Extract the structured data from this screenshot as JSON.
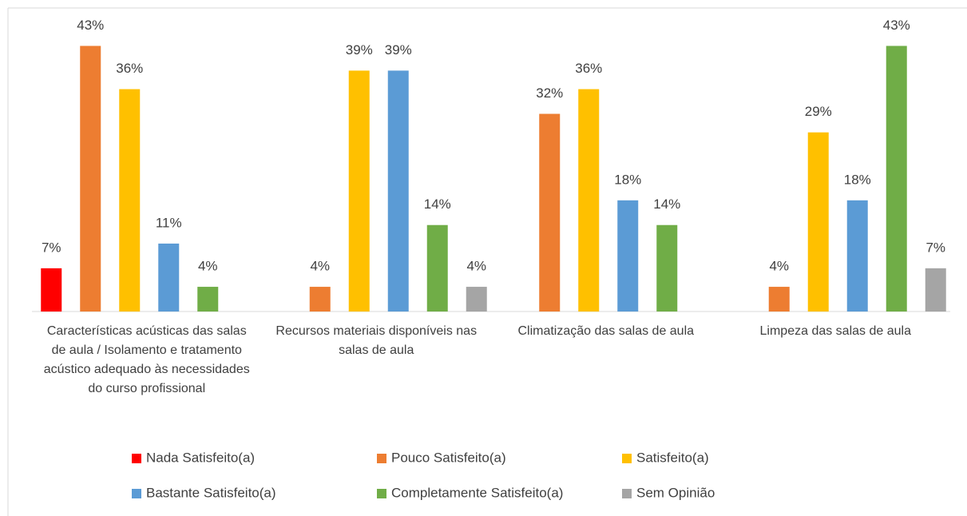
{
  "chart_data": {
    "type": "bar",
    "categories": [
      "Características acústicas das salas de aula / Isolamento e tratamento acústico adequado às necessidades do curso profissional",
      "Recursos materiais disponíveis nas salas de aula",
      "Climatização das salas de aula",
      "Limpeza das salas de aula"
    ],
    "series": [
      {
        "name": "Nada Satisfeito(a)",
        "color": "#ff0000",
        "values": [
          7,
          null,
          null,
          null
        ],
        "value_labels": [
          "7%",
          null,
          null,
          null
        ]
      },
      {
        "name": "Pouco Satisfeito(a)",
        "color": "#ed7d31",
        "values": [
          43,
          4,
          32,
          4
        ],
        "value_labels": [
          "43%",
          "4%",
          "32%",
          "4%"
        ]
      },
      {
        "name": "Satisfeito(a)",
        "color": "#ffc000",
        "values": [
          36,
          39,
          36,
          29
        ],
        "value_labels": [
          "36%",
          "39%",
          "36%",
          "29%"
        ]
      },
      {
        "name": "Bastante Satisfeito(a)",
        "color": "#5b9bd5",
        "values": [
          11,
          39,
          18,
          18
        ],
        "value_labels": [
          "11%",
          "39%",
          "18%",
          "18%"
        ]
      },
      {
        "name": "Completamente Satisfeito(a)",
        "color": "#70ad47",
        "values": [
          4,
          14,
          14,
          43
        ],
        "value_labels": [
          "4%",
          "14%",
          "14%",
          "43%"
        ]
      },
      {
        "name": "Sem Opinião",
        "color": "#a5a5a5",
        "values": [
          null,
          4,
          null,
          7
        ],
        "value_labels": [
          null,
          "4%",
          null,
          "7%"
        ]
      }
    ],
    "ylim": [
      0,
      45
    ],
    "legend": "bottom"
  }
}
